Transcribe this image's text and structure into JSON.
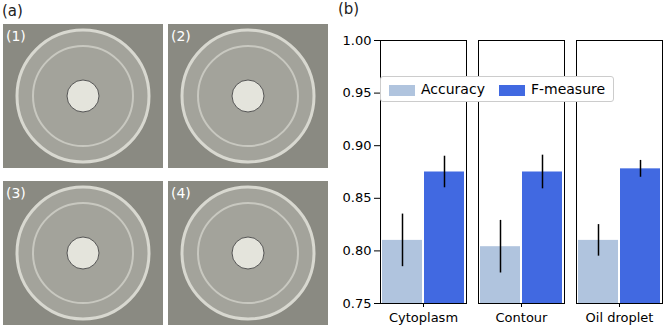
{
  "panel_a": {
    "label": "(a)",
    "image_labels": [
      "(1)",
      "(2)",
      "(3)",
      "(4)"
    ]
  },
  "chart_data": {
    "type": "bar",
    "title": "(b)",
    "categories": [
      "Cytoplasm",
      "Contour",
      "Oil droplet"
    ],
    "series": [
      {
        "name": "Accuracy",
        "color": "#b0c4de",
        "values": [
          0.81,
          0.804,
          0.81
        ],
        "errors": [
          0.025,
          0.025,
          0.015
        ]
      },
      {
        "name": "F-measure",
        "color": "#4169e1",
        "values": [
          0.875,
          0.875,
          0.878
        ],
        "errors": [
          0.015,
          0.016,
          0.008
        ]
      }
    ],
    "ylim": [
      0.75,
      1.0
    ],
    "yticks": [
      0.75,
      {
        "value": 0.8,
        "label": "0.80"
      },
      0.85,
      {
        "value": 0.9,
        "label": "0.90"
      },
      0.95,
      {
        "value": 1.0,
        "label": "1.00"
      }
    ],
    "grid": false,
    "legend": "upper center"
  }
}
